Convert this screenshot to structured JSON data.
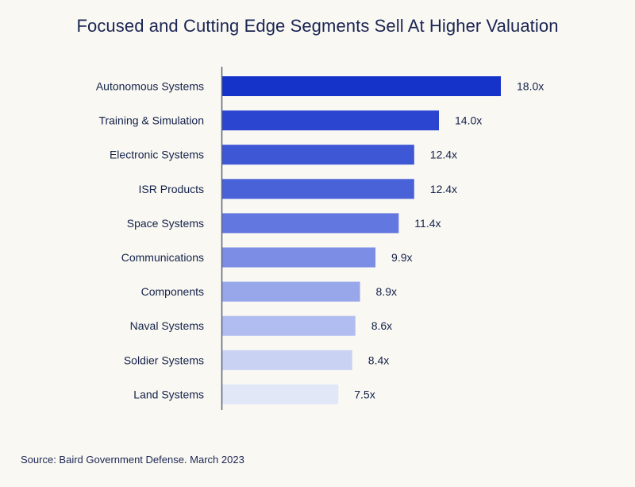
{
  "title": "Focused and Cutting Edge Segments Sell At Higher Valuation",
  "source": "Source: Baird Government Defense. March 2023",
  "chart_data": {
    "type": "bar",
    "orientation": "horizontal",
    "title": "Focused and Cutting Edge Segments Sell At Higher Valuation",
    "categories": [
      "Autonomous Systems",
      "Training & Simulation",
      "Electronic Systems",
      "ISR Products",
      "Space Systems",
      "Communications",
      "Components",
      "Naval Systems",
      "Soldier Systems",
      "Land Systems"
    ],
    "values": [
      18.0,
      14.0,
      12.4,
      12.4,
      11.4,
      9.9,
      8.9,
      8.6,
      8.4,
      7.5
    ],
    "value_labels": [
      "18.0x",
      "14.0x",
      "12.4x",
      "12.4x",
      "11.4x",
      "9.9x",
      "8.9x",
      "8.6x",
      "8.4x",
      "7.5x"
    ],
    "colors": [
      "#1533c8",
      "#2b45d0",
      "#3e57d5",
      "#4a62d8",
      "#6277df",
      "#7c8de6",
      "#98a6ea",
      "#b1bcf0",
      "#cad2f4",
      "#e2e7f8"
    ],
    "axis_color": "#5a6275",
    "grid": false,
    "legend": "none"
  }
}
